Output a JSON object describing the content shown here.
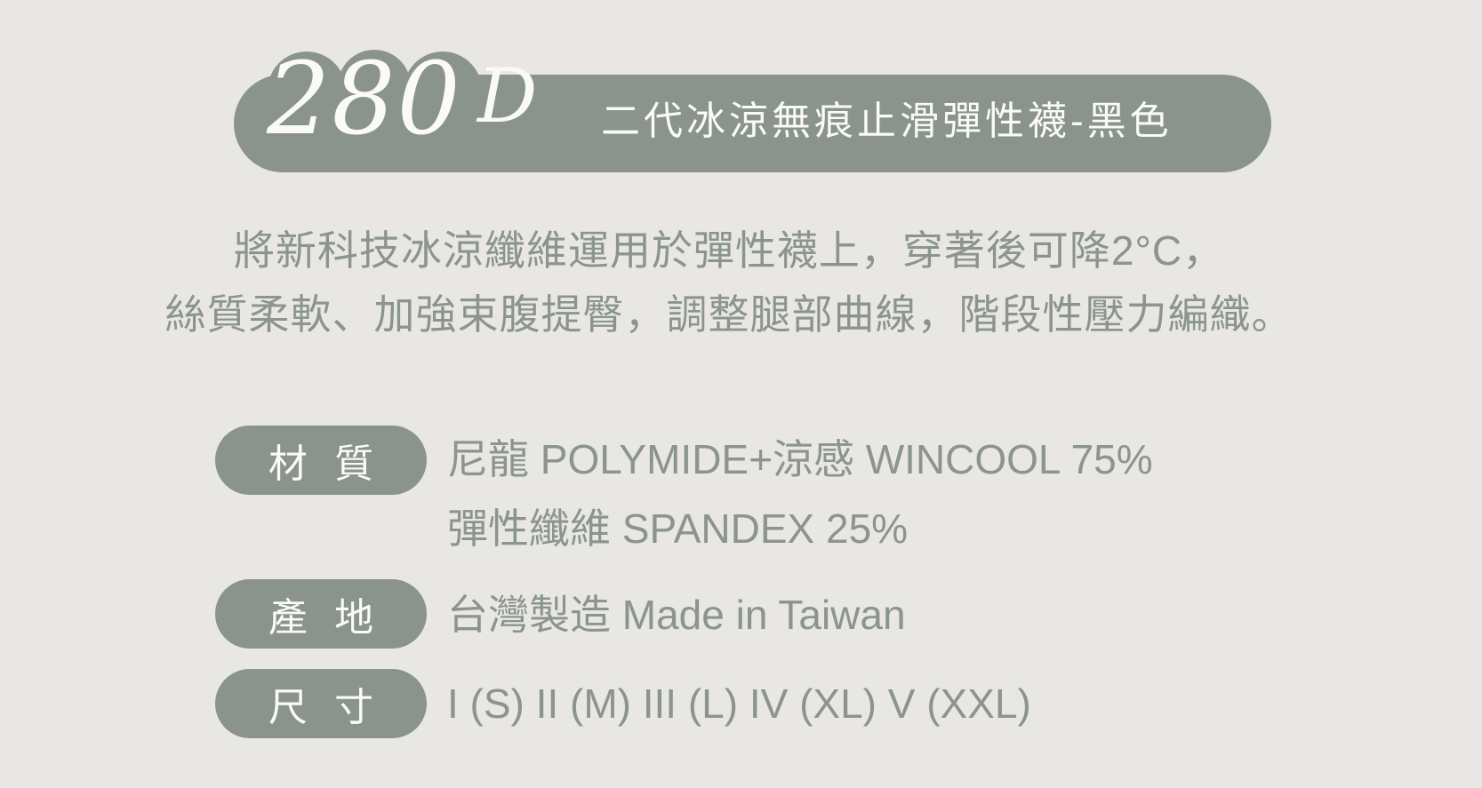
{
  "colors": {
    "background": "#E8E7E5",
    "sage": "#8A938C",
    "sage_text": "#8B948D",
    "banner_text": "#FAFAF8"
  },
  "banner": {
    "denier_value": "280",
    "denier_unit": "D",
    "title": "二代冰涼無痕止滑彈性襪-黑色"
  },
  "description": {
    "line1": "將新科技冰涼纖維運用於彈性襪上，穿著後可降2°C，",
    "line2": "絲質柔軟、加強束腹提臀，調整腿部曲線，階段性壓力編織。"
  },
  "specs": [
    {
      "label": "材 質",
      "value_lines": [
        "尼龍 POLYMIDE+涼感 WINCOOL 75%",
        "彈性纖維 SPANDEX 25%"
      ]
    },
    {
      "label": "產 地",
      "value_lines": [
        "台灣製造 Made in Taiwan"
      ]
    },
    {
      "label": "尺 寸",
      "value_lines": [
        "I (S) II (M) III (L) IV (XL) V (XXL)"
      ]
    }
  ]
}
